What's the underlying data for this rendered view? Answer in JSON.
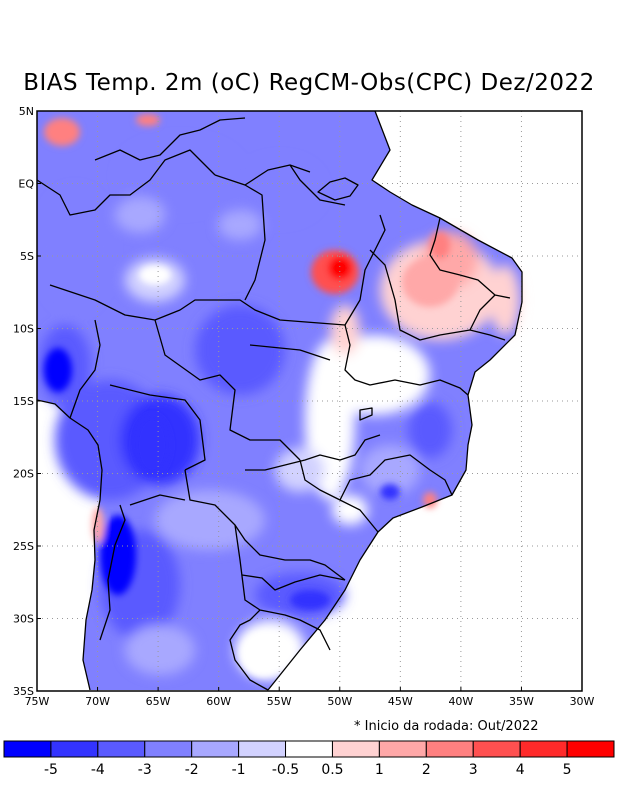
{
  "title": "BIAS Temp. 2m (oC) RegCM-Obs(CPC) Dez/2022",
  "note": "* Inicio da rodada: Out/2022",
  "map": {
    "lat_labels": [
      "5N",
      "EQ",
      "5S",
      "10S",
      "15S",
      "20S",
      "25S",
      "30S",
      "35S"
    ],
    "lon_labels": [
      "75W",
      "70W",
      "65W",
      "60W",
      "55W",
      "50W",
      "45W",
      "40W",
      "35W",
      "30W"
    ],
    "grid_lines": "dotted",
    "colors": {
      "neg5": "#0000ff",
      "neg4": "#3333ff",
      "neg3": "#5a5aff",
      "neg2": "#8080ff",
      "neg1": "#a8a8ff",
      "neg05": "#d2d2ff",
      "zero": "#ffffff",
      "pos1": "#ffd2d2",
      "pos2": "#ffa8a8",
      "pos3": "#ff8080",
      "pos4": "#ff5050",
      "pos5": "#ff2a2a",
      "pos6": "#ff0000"
    }
  },
  "colorbar": {
    "labels": [
      "-5",
      "-4",
      "-3",
      "-2",
      "-1",
      "-0.5",
      "0.5",
      "1",
      "2",
      "3",
      "4",
      "5"
    ],
    "colors": [
      "#0000ff",
      "#3333ff",
      "#5a5aff",
      "#8080ff",
      "#a8a8ff",
      "#d2d2ff",
      "#ffffff",
      "#ffd2d2",
      "#ffa8a8",
      "#ff8080",
      "#ff5050",
      "#ff2a2a",
      "#ff0000"
    ]
  }
}
